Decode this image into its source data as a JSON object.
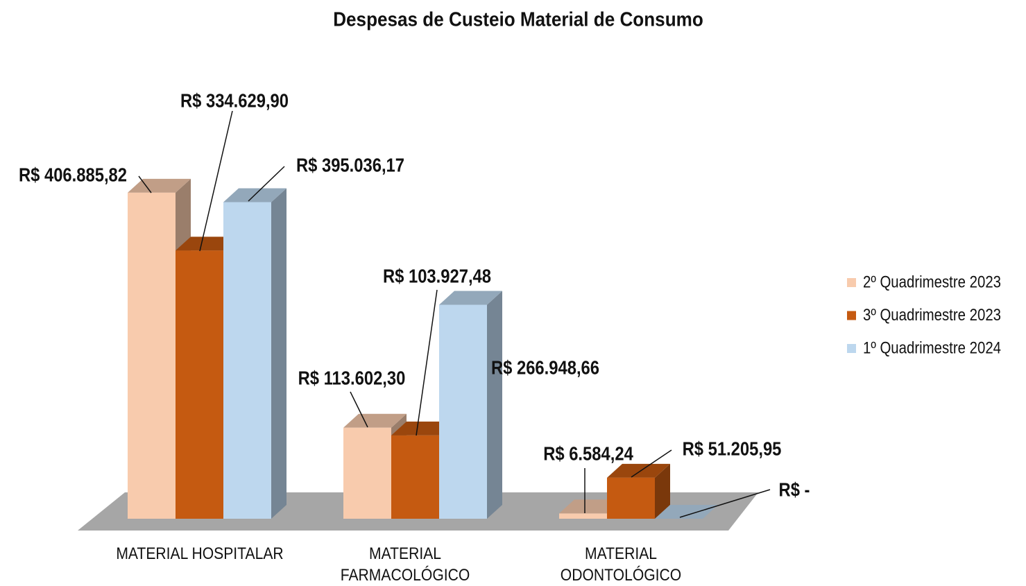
{
  "chart_data": {
    "type": "bar3d",
    "title": "Despesas de Custeio Material de Consumo",
    "categories": [
      "MATERIAL HOSPITALAR",
      "MATERIAL FARMACOLÓGICO",
      "MATERIAL ODONTOLÓGICO"
    ],
    "series": [
      {
        "name": "2º Quadrimestre 2023",
        "color": "#f8cbad",
        "values": [
          406885.82,
          113602.3,
          6584.24
        ],
        "value_labels": [
          "R$ 406.885,82",
          "R$ 113.602,30",
          "R$ 6.584,24"
        ]
      },
      {
        "name": "3º Quadrimestre 2023",
        "color": "#c55a11",
        "values": [
          334629.9,
          103927.48,
          51205.95
        ],
        "value_labels": [
          "R$ 334.629,90",
          "R$ 103.927,48",
          "R$ 51.205,95"
        ]
      },
      {
        "name": "1º Quadrimestre 2024",
        "color": "#bdd7ee",
        "values": [
          395036.17,
          266948.66,
          0
        ],
        "value_labels": [
          "R$ 395.036,17",
          "R$ 266.948,66",
          "R$ -"
        ]
      }
    ],
    "ylim": [
      0,
      450000
    ],
    "legend": "right"
  }
}
